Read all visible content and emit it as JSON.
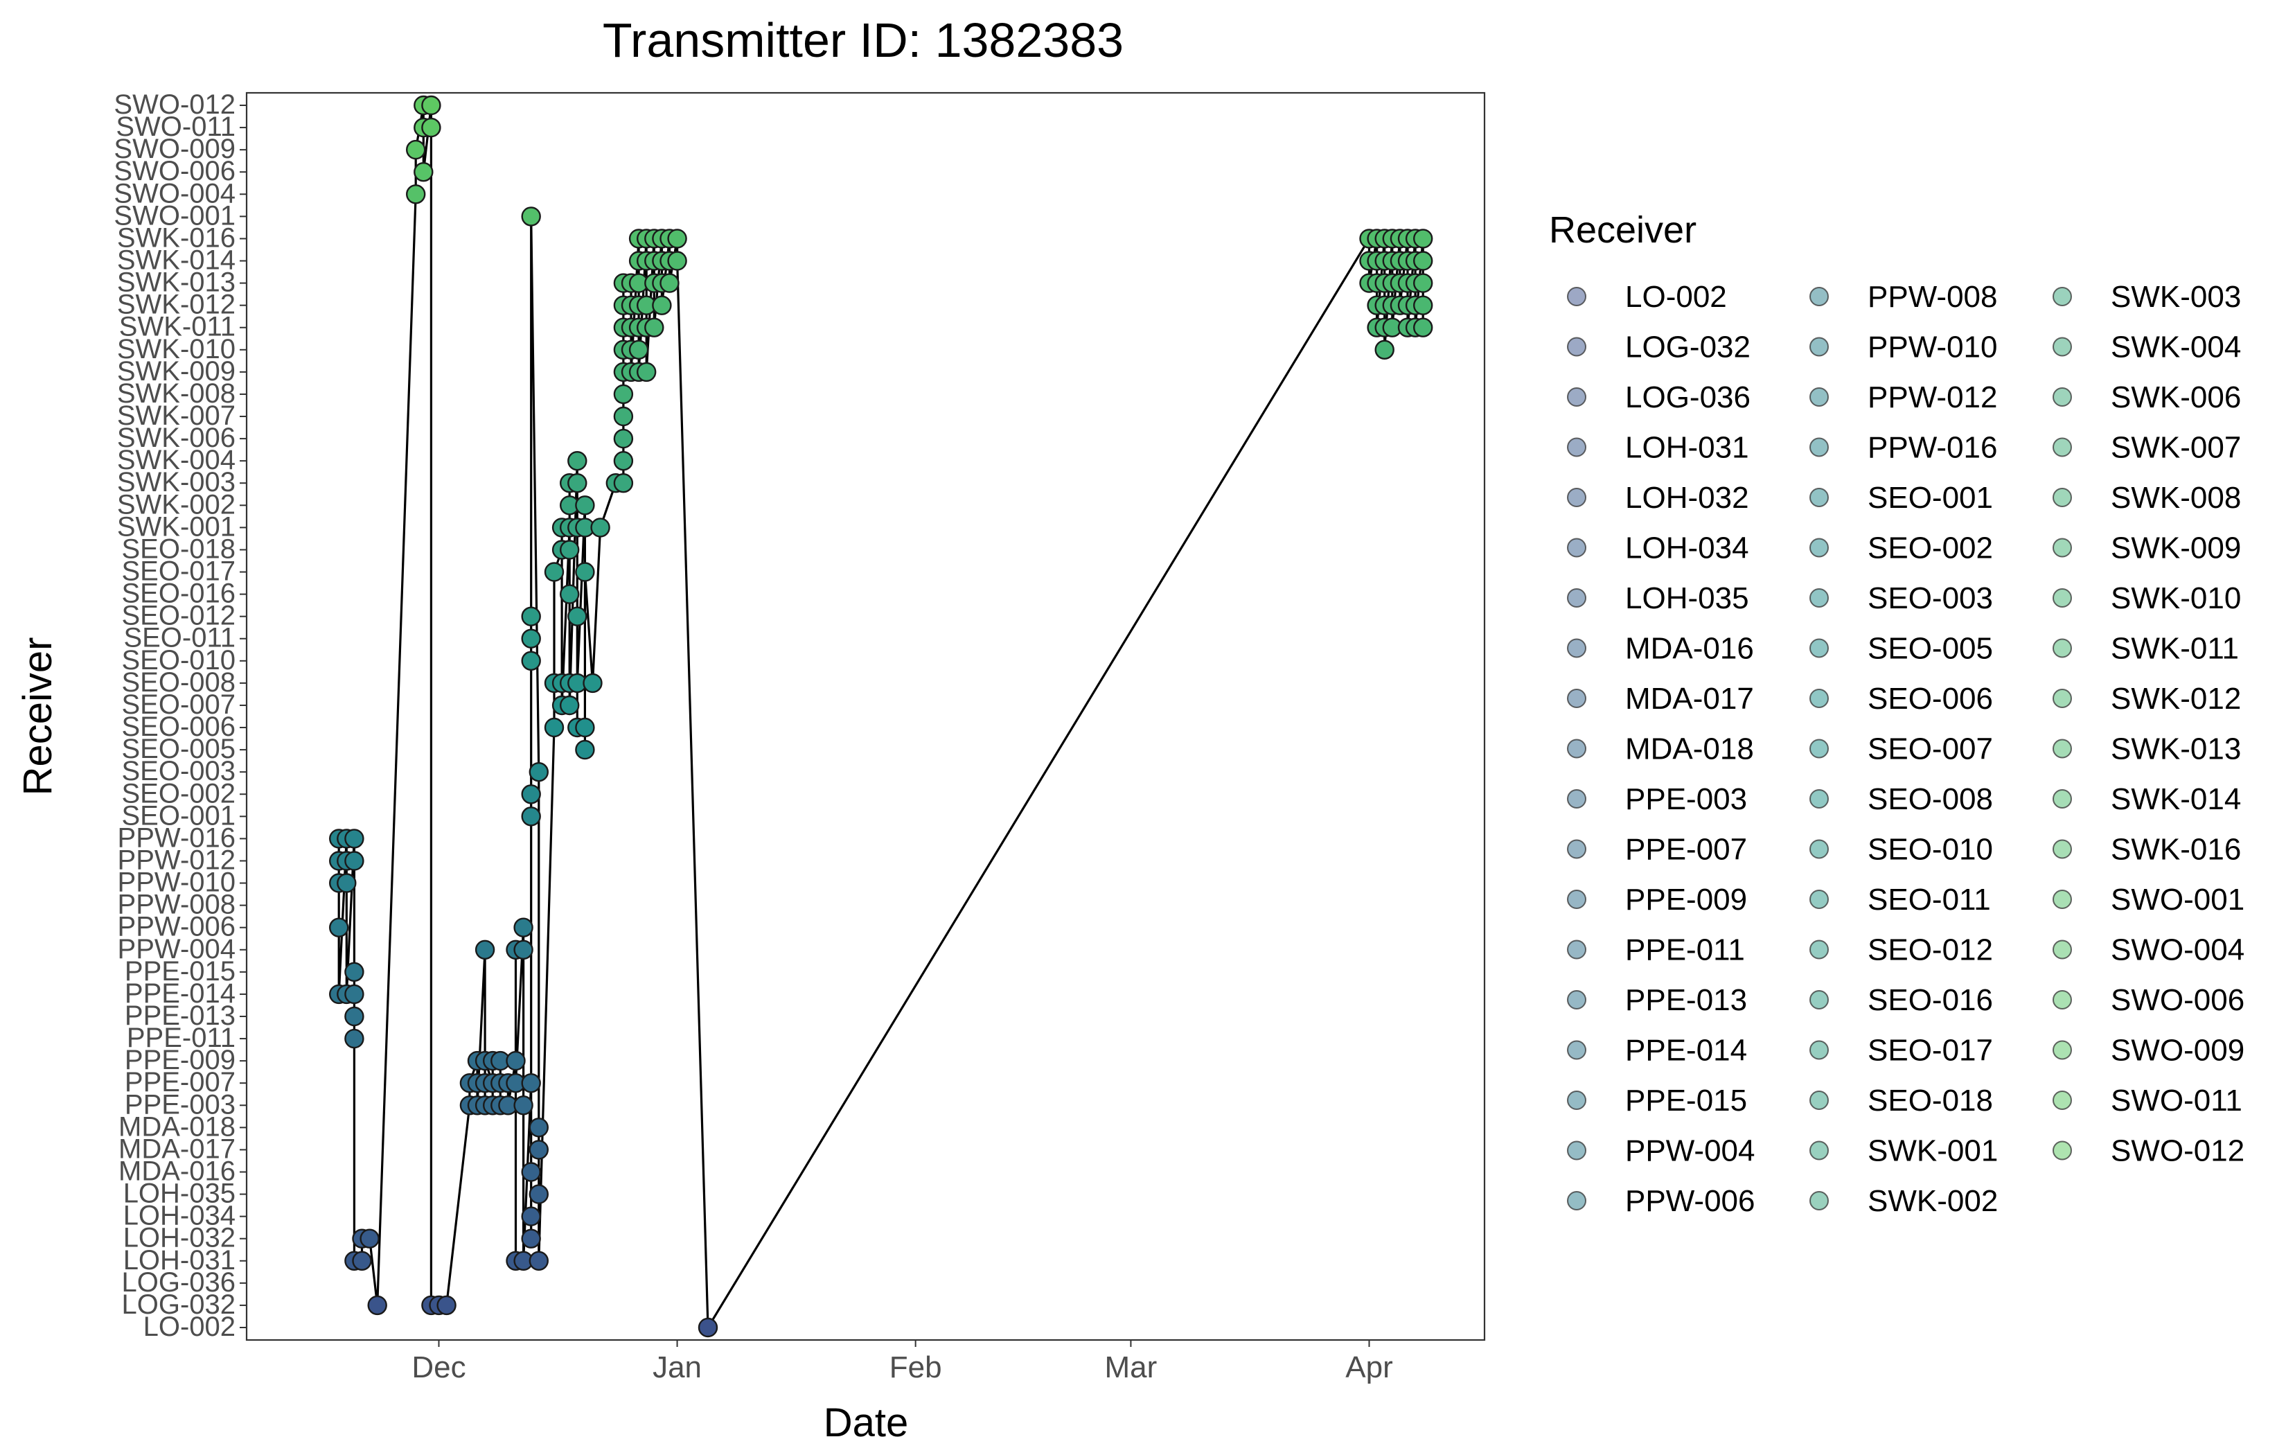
{
  "chart_data": {
    "type": "scatter",
    "title": "Transmitter ID: 1382383",
    "xlabel": "Date",
    "ylabel": "Receiver",
    "x_tick_labels": [
      "Dec",
      "Jan",
      "Feb",
      "Mar",
      "Apr"
    ],
    "x_ticks": [
      "2020-12-01",
      "2021-01-01",
      "2021-02-01",
      "2021-03-01",
      "2021-04-01"
    ],
    "xlim": [
      "2020-11-06",
      "2021-04-16"
    ],
    "receivers": [
      "LO-002",
      "LOG-032",
      "LOG-036",
      "LOH-031",
      "LOH-032",
      "LOH-034",
      "LOH-035",
      "MDA-016",
      "MDA-017",
      "MDA-018",
      "PPE-003",
      "PPE-007",
      "PPE-009",
      "PPE-011",
      "PPE-013",
      "PPE-014",
      "PPE-015",
      "PPW-004",
      "PPW-006",
      "PPW-008",
      "PPW-010",
      "PPW-012",
      "PPW-016",
      "SEO-001",
      "SEO-002",
      "SEO-003",
      "SEO-005",
      "SEO-006",
      "SEO-007",
      "SEO-008",
      "SEO-010",
      "SEO-011",
      "SEO-012",
      "SEO-016",
      "SEO-017",
      "SEO-018",
      "SWK-001",
      "SWK-002",
      "SWK-003",
      "SWK-004",
      "SWK-006",
      "SWK-007",
      "SWK-008",
      "SWK-009",
      "SWK-010",
      "SWK-011",
      "SWK-012",
      "SWK-013",
      "SWK-014",
      "SWK-016",
      "SWO-001",
      "SWO-004",
      "SWO-006",
      "SWO-009",
      "SWO-011",
      "SWO-012"
    ],
    "legend_title": "Receiver",
    "legend_position": "right",
    "grid": false,
    "colors": {
      "low": "#3b528b",
      "mid": "#21918c",
      "high": "#5ec962",
      "line": "#000000"
    },
    "detections": [
      [
        "2020-11-18",
        "PPW-012"
      ],
      [
        "2020-11-18",
        "PPW-010"
      ],
      [
        "2020-11-18",
        "PPW-016"
      ],
      [
        "2020-11-18",
        "PPW-006"
      ],
      [
        "2020-11-18",
        "PPE-014"
      ],
      [
        "2020-11-19",
        "PPW-016"
      ],
      [
        "2020-11-19",
        "PPW-012"
      ],
      [
        "2020-11-19",
        "PPW-010"
      ],
      [
        "2020-11-19",
        "PPE-014"
      ],
      [
        "2020-11-20",
        "PPW-016"
      ],
      [
        "2020-11-20",
        "PPW-012"
      ],
      [
        "2020-11-20",
        "PPE-015"
      ],
      [
        "2020-11-20",
        "PPE-014"
      ],
      [
        "2020-11-20",
        "PPE-013"
      ],
      [
        "2020-11-20",
        "PPE-011"
      ],
      [
        "2020-11-20",
        "LOH-031"
      ],
      [
        "2020-11-21",
        "LOH-031"
      ],
      [
        "2020-11-21",
        "LOH-032"
      ],
      [
        "2020-11-22",
        "LOH-032"
      ],
      [
        "2020-11-23",
        "LOG-032"
      ],
      [
        "2020-11-28",
        "SWO-004"
      ],
      [
        "2020-11-28",
        "SWO-009"
      ],
      [
        "2020-11-29",
        "SWO-012"
      ],
      [
        "2020-11-29",
        "SWO-011"
      ],
      [
        "2020-11-29",
        "SWO-006"
      ],
      [
        "2020-11-30",
        "SWO-012"
      ],
      [
        "2020-11-30",
        "SWO-011"
      ],
      [
        "2020-11-30",
        "LOG-032"
      ],
      [
        "2020-12-01",
        "LOG-032"
      ],
      [
        "2020-12-02",
        "LOG-032"
      ],
      [
        "2020-12-05",
        "PPE-003"
      ],
      [
        "2020-12-05",
        "PPE-007"
      ],
      [
        "2020-12-06",
        "PPE-009"
      ],
      [
        "2020-12-06",
        "PPE-007"
      ],
      [
        "2020-12-06",
        "PPE-003"
      ],
      [
        "2020-12-07",
        "PPW-004"
      ],
      [
        "2020-12-07",
        "PPE-003"
      ],
      [
        "2020-12-07",
        "PPE-007"
      ],
      [
        "2020-12-07",
        "PPE-009"
      ],
      [
        "2020-12-08",
        "PPE-007"
      ],
      [
        "2020-12-08",
        "PPE-003"
      ],
      [
        "2020-12-08",
        "PPE-009"
      ],
      [
        "2020-12-09",
        "PPE-009"
      ],
      [
        "2020-12-09",
        "PPE-003"
      ],
      [
        "2020-12-09",
        "PPE-007"
      ],
      [
        "2020-12-10",
        "PPE-007"
      ],
      [
        "2020-12-10",
        "PPE-003"
      ],
      [
        "2020-12-11",
        "PPE-009"
      ],
      [
        "2020-12-11",
        "PPW-004"
      ],
      [
        "2020-12-11",
        "LOH-031"
      ],
      [
        "2020-12-11",
        "PPE-007"
      ],
      [
        "2020-12-12",
        "PPW-006"
      ],
      [
        "2020-12-12",
        "PPW-004"
      ],
      [
        "2020-12-12",
        "PPE-003"
      ],
      [
        "2020-12-12",
        "LOH-031"
      ],
      [
        "2020-12-13",
        "PPE-007"
      ],
      [
        "2020-12-13",
        "MDA-016"
      ],
      [
        "2020-12-13",
        "LOH-034"
      ],
      [
        "2020-12-13",
        "LOH-032"
      ],
      [
        "2020-12-13",
        "SEO-001"
      ],
      [
        "2020-12-13",
        "SEO-002"
      ],
      [
        "2020-12-13",
        "SEO-010"
      ],
      [
        "2020-12-13",
        "SEO-011"
      ],
      [
        "2020-12-13",
        "SEO-012"
      ],
      [
        "2020-12-13",
        "SWO-001"
      ],
      [
        "2020-12-14",
        "SEO-003"
      ],
      [
        "2020-12-14",
        "MDA-017"
      ],
      [
        "2020-12-14",
        "LOH-035"
      ],
      [
        "2020-12-14",
        "MDA-018"
      ],
      [
        "2020-12-14",
        "LOH-031"
      ],
      [
        "2020-12-16",
        "SEO-006"
      ],
      [
        "2020-12-16",
        "SEO-008"
      ],
      [
        "2020-12-16",
        "SEO-017"
      ],
      [
        "2020-12-17",
        "SEO-018"
      ],
      [
        "2020-12-17",
        "SEO-008"
      ],
      [
        "2020-12-17",
        "SWK-001"
      ],
      [
        "2020-12-17",
        "SEO-007"
      ],
      [
        "2020-12-18",
        "SWK-001"
      ],
      [
        "2020-12-18",
        "SWK-003"
      ],
      [
        "2020-12-18",
        "SWK-002"
      ],
      [
        "2020-12-18",
        "SEO-008"
      ],
      [
        "2020-12-18",
        "SEO-016"
      ],
      [
        "2020-12-18",
        "SEO-018"
      ],
      [
        "2020-12-18",
        "SEO-007"
      ],
      [
        "2020-12-19",
        "SWK-004"
      ],
      [
        "2020-12-19",
        "SWK-003"
      ],
      [
        "2020-12-19",
        "SWK-001"
      ],
      [
        "2020-12-19",
        "SEO-012"
      ],
      [
        "2020-12-19",
        "SEO-006"
      ],
      [
        "2020-12-19",
        "SEO-008"
      ],
      [
        "2020-12-20",
        "SWK-002"
      ],
      [
        "2020-12-20",
        "SWK-001"
      ],
      [
        "2020-12-20",
        "SEO-006"
      ],
      [
        "2020-12-20",
        "SEO-005"
      ],
      [
        "2020-12-20",
        "SEO-017"
      ],
      [
        "2020-12-21",
        "SEO-008"
      ],
      [
        "2020-12-22",
        "SWK-001"
      ],
      [
        "2020-12-24",
        "SWK-003"
      ],
      [
        "2020-12-25",
        "SWK-003"
      ],
      [
        "2020-12-25",
        "SWK-004"
      ],
      [
        "2020-12-25",
        "SWK-006"
      ],
      [
        "2020-12-25",
        "SWK-007"
      ],
      [
        "2020-12-25",
        "SWK-008"
      ],
      [
        "2020-12-25",
        "SWK-009"
      ],
      [
        "2020-12-25",
        "SWK-010"
      ],
      [
        "2020-12-25",
        "SWK-011"
      ],
      [
        "2020-12-25",
        "SWK-012"
      ],
      [
        "2020-12-25",
        "SWK-013"
      ],
      [
        "2020-12-26",
        "SWK-013"
      ],
      [
        "2020-12-26",
        "SWK-012"
      ],
      [
        "2020-12-26",
        "SWK-011"
      ],
      [
        "2020-12-26",
        "SWK-010"
      ],
      [
        "2020-12-26",
        "SWK-009"
      ],
      [
        "2020-12-27",
        "SWK-016"
      ],
      [
        "2020-12-27",
        "SWK-014"
      ],
      [
        "2020-12-27",
        "SWK-013"
      ],
      [
        "2020-12-27",
        "SWK-012"
      ],
      [
        "2020-12-27",
        "SWK-011"
      ],
      [
        "2020-12-27",
        "SWK-010"
      ],
      [
        "2020-12-27",
        "SWK-009"
      ],
      [
        "2020-12-28",
        "SWK-016"
      ],
      [
        "2020-12-28",
        "SWK-014"
      ],
      [
        "2020-12-28",
        "SWK-012"
      ],
      [
        "2020-12-28",
        "SWK-011"
      ],
      [
        "2020-12-28",
        "SWK-009"
      ],
      [
        "2020-12-29",
        "SWK-016"
      ],
      [
        "2020-12-29",
        "SWK-014"
      ],
      [
        "2020-12-29",
        "SWK-013"
      ],
      [
        "2020-12-29",
        "SWK-011"
      ],
      [
        "2020-12-30",
        "SWK-016"
      ],
      [
        "2020-12-30",
        "SWK-014"
      ],
      [
        "2020-12-30",
        "SWK-013"
      ],
      [
        "2020-12-30",
        "SWK-012"
      ],
      [
        "2020-12-31",
        "SWK-016"
      ],
      [
        "2020-12-31",
        "SWK-014"
      ],
      [
        "2020-12-31",
        "SWK-013"
      ],
      [
        "2021-01-01",
        "SWK-016"
      ],
      [
        "2021-01-01",
        "SWK-014"
      ],
      [
        "2021-01-05",
        "LO-002"
      ],
      [
        "2021-04-01",
        "SWK-016"
      ],
      [
        "2021-04-01",
        "SWK-014"
      ],
      [
        "2021-04-01",
        "SWK-013"
      ],
      [
        "2021-04-02",
        "SWK-016"
      ],
      [
        "2021-04-02",
        "SWK-014"
      ],
      [
        "2021-04-02",
        "SWK-013"
      ],
      [
        "2021-04-02",
        "SWK-012"
      ],
      [
        "2021-04-02",
        "SWK-011"
      ],
      [
        "2021-04-03",
        "SWK-016"
      ],
      [
        "2021-04-03",
        "SWK-014"
      ],
      [
        "2021-04-03",
        "SWK-013"
      ],
      [
        "2021-04-03",
        "SWK-012"
      ],
      [
        "2021-04-03",
        "SWK-011"
      ],
      [
        "2021-04-03",
        "SWK-010"
      ],
      [
        "2021-04-04",
        "SWK-016"
      ],
      [
        "2021-04-04",
        "SWK-014"
      ],
      [
        "2021-04-04",
        "SWK-013"
      ],
      [
        "2021-04-04",
        "SWK-012"
      ],
      [
        "2021-04-04",
        "SWK-011"
      ],
      [
        "2021-04-05",
        "SWK-016"
      ],
      [
        "2021-04-05",
        "SWK-014"
      ],
      [
        "2021-04-05",
        "SWK-013"
      ],
      [
        "2021-04-05",
        "SWK-012"
      ],
      [
        "2021-04-06",
        "SWK-016"
      ],
      [
        "2021-04-06",
        "SWK-014"
      ],
      [
        "2021-04-06",
        "SWK-013"
      ],
      [
        "2021-04-06",
        "SWK-012"
      ],
      [
        "2021-04-06",
        "SWK-011"
      ],
      [
        "2021-04-07",
        "SWK-016"
      ],
      [
        "2021-04-07",
        "SWK-014"
      ],
      [
        "2021-04-07",
        "SWK-013"
      ],
      [
        "2021-04-07",
        "SWK-012"
      ],
      [
        "2021-04-07",
        "SWK-011"
      ],
      [
        "2021-04-08",
        "SWK-016"
      ],
      [
        "2021-04-08",
        "SWK-014"
      ],
      [
        "2021-04-08",
        "SWK-013"
      ],
      [
        "2021-04-08",
        "SWK-012"
      ],
      [
        "2021-04-08",
        "SWK-011"
      ]
    ]
  }
}
